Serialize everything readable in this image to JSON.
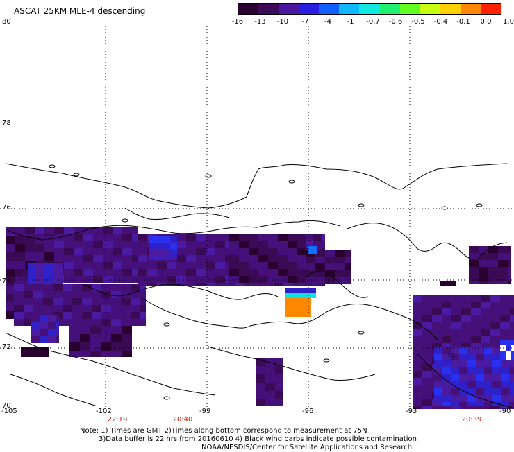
{
  "title": "ASCAT 25KM MLE-4 descending",
  "colorbar": {
    "labels": [
      "-16",
      "-13",
      "-10",
      "-7",
      "-4",
      "-1",
      "-0.7",
      "-0.6",
      "-0.5",
      "-0.4",
      "-0.1",
      "0.0",
      "1.0"
    ],
    "colors": [
      "#2a0030",
      "#3d0a5a",
      "#4a16a0",
      "#2a1ee0",
      "#1060ff",
      "#10b8ff",
      "#10e8e0",
      "#20f070",
      "#60ff20",
      "#c8ff10",
      "#ffd000",
      "#ff8800",
      "#ff2200"
    ]
  },
  "lat_labels": [
    "80",
    "78",
    "76",
    "74",
    "72",
    "70"
  ],
  "lon_labels": [
    "-105",
    "-102",
    "-99",
    "-96",
    "-93",
    "-90"
  ],
  "times": [
    "22:19",
    "20:40",
    "20:39"
  ],
  "notes": {
    "line1": "Note: 1) Times are GMT 2)Times along bottom correspond to measurement at 75N",
    "line2": "3)Data buffer is 22 hrs from 20160610 4) Black wind barbs indicate possible contamination",
    "line3": "NOAA/NESDIS/Center for Satellite Applications and Research"
  }
}
